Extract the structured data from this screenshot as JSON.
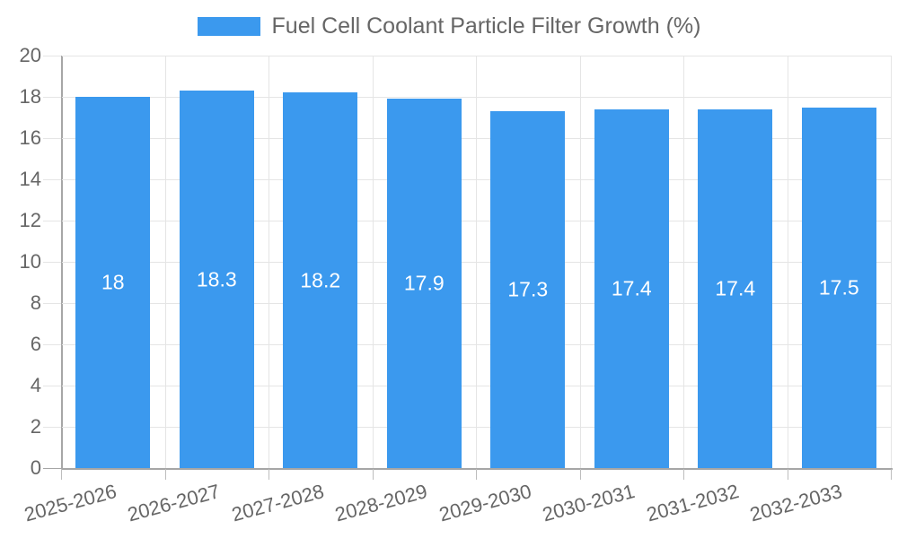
{
  "chart_data": {
    "type": "bar",
    "title": "Fuel Cell Coolant Particle Filter Growth (%)",
    "xlabel": "",
    "ylabel": "",
    "categories": [
      "2025-2026",
      "2026-2027",
      "2027-2028",
      "2028-2029",
      "2029-2030",
      "2030-2031",
      "2031-2032",
      "2032-2033"
    ],
    "values": [
      18,
      18.3,
      18.2,
      17.9,
      17.3,
      17.4,
      17.4,
      17.5
    ],
    "value_labels": [
      "18",
      "18.3",
      "18.2",
      "17.9",
      "17.3",
      "17.4",
      "17.4",
      "17.5"
    ],
    "ylim": [
      0,
      20
    ],
    "ytick_step": 2,
    "ytick_labels": [
      "0",
      "2",
      "4",
      "6",
      "8",
      "10",
      "12",
      "14",
      "16",
      "18",
      "20"
    ],
    "grid": true,
    "legend_position": "top-center",
    "colors": {
      "bar": "#3b99ee",
      "value_label": "#ffffff",
      "axis_line": "#a6a6a6",
      "gridline": "#e5e5e5",
      "text": "#666666"
    }
  }
}
